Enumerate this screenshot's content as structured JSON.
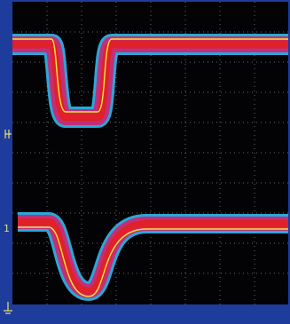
{
  "channel_marker": "1"
}
